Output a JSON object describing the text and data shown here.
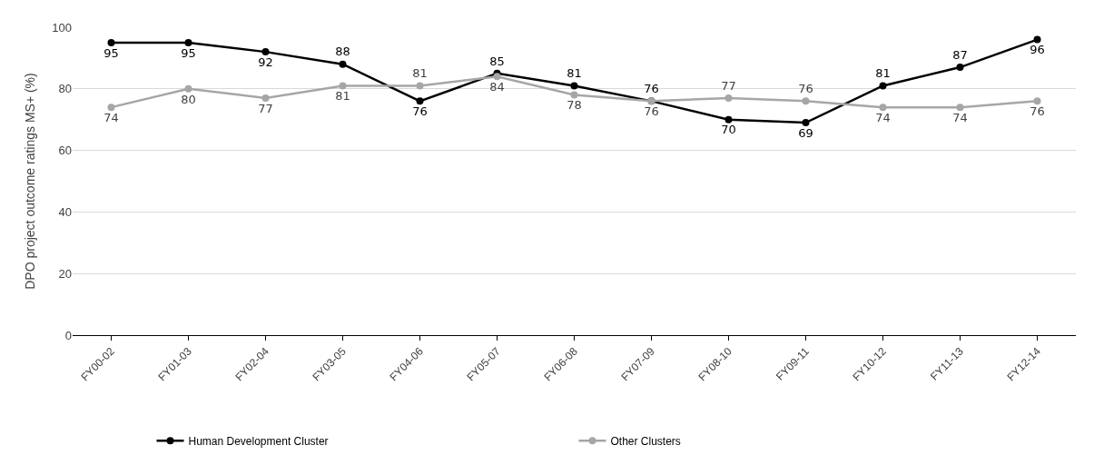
{
  "chart_data": {
    "type": "line",
    "ylabel": "DPO project outcome ratings MS+ (%)",
    "categories": [
      "FY00-02",
      "FY01-03",
      "FY02-04",
      "FY03-05",
      "FY04-06",
      "FY05-07",
      "FY06-08",
      "FY07-09",
      "FY08-10",
      "FY09-11",
      "FY10-12",
      "FY11-13",
      "FY12-14"
    ],
    "series": [
      {
        "name": "Human Development Cluster",
        "color": "#000000",
        "values": [
          95,
          95,
          92,
          88,
          76,
          85,
          81,
          76,
          70,
          69,
          81,
          87,
          96
        ]
      },
      {
        "name": "Other Clusters",
        "color": "#a6a6a6",
        "values": [
          74,
          80,
          77,
          81,
          81,
          84,
          78,
          76,
          77,
          76,
          74,
          74,
          76
        ]
      }
    ],
    "ylim": [
      0,
      100
    ],
    "yticks": [
      0,
      20,
      40,
      60,
      80,
      100
    ],
    "grid": "y",
    "legend": "bottom",
    "marker": "circle",
    "line_style": "solid",
    "data_labels": true
  }
}
